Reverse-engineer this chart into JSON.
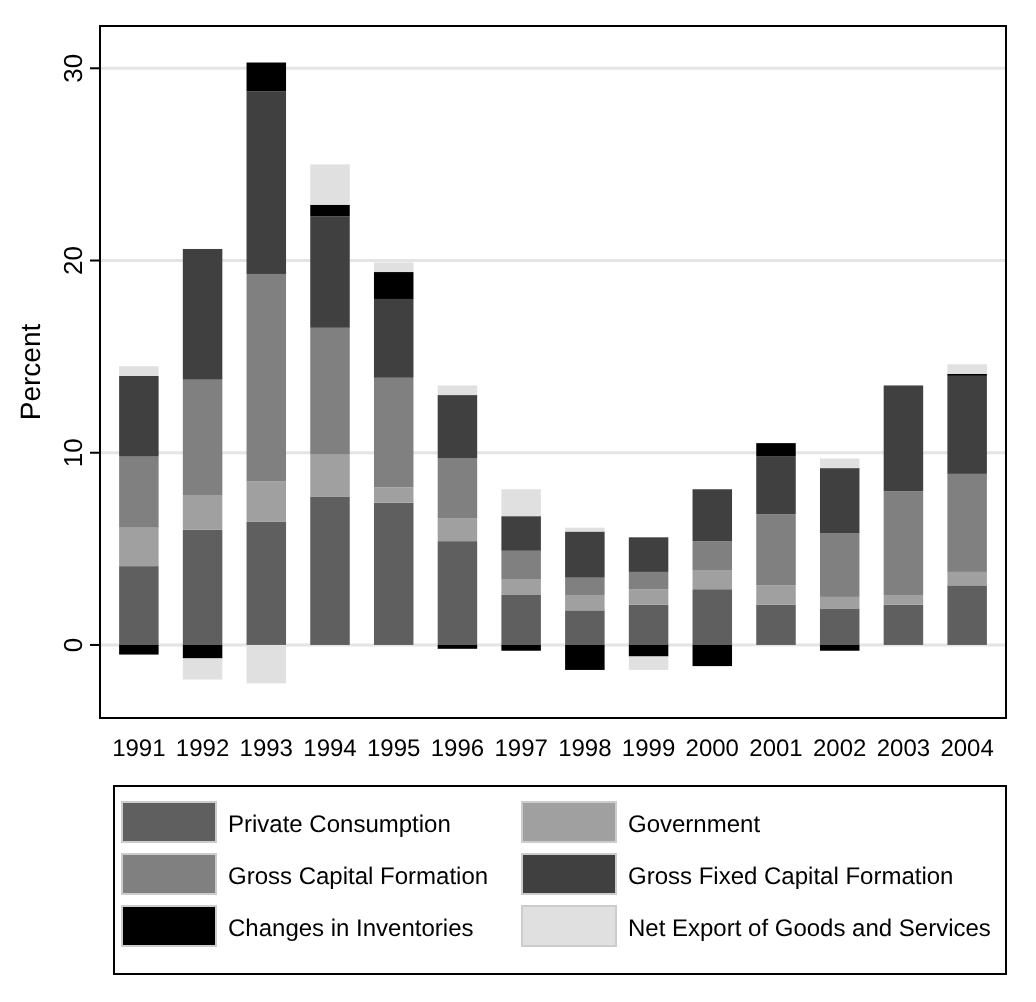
{
  "chart_data": {
    "type": "bar",
    "stacked": true,
    "ylabel": "Percent",
    "categories": [
      "1991",
      "1992",
      "1993",
      "1994",
      "1995",
      "1996",
      "1997",
      "1998",
      "1999",
      "2000",
      "2001",
      "2002",
      "2003",
      "2004"
    ],
    "series": [
      {
        "name": "Private Consumption",
        "color": "#5f5f5f",
        "values": [
          4.1,
          6.0,
          6.4,
          7.7,
          7.4,
          5.4,
          2.6,
          1.8,
          2.1,
          2.9,
          2.1,
          1.9,
          2.1,
          3.1
        ]
      },
      {
        "name": "Government",
        "color": "#a0a0a0",
        "values": [
          2.0,
          1.8,
          2.1,
          2.2,
          0.8,
          1.2,
          0.8,
          0.8,
          0.8,
          1.0,
          1.0,
          0.6,
          0.5,
          0.7
        ]
      },
      {
        "name": "Gross Capital Formation",
        "color": "#808080",
        "values": [
          3.7,
          6.0,
          10.8,
          6.6,
          5.7,
          3.1,
          1.5,
          0.9,
          0.9,
          1.5,
          3.7,
          3.3,
          5.4,
          5.1
        ]
      },
      {
        "name": "Gross Fixed Capital Formation",
        "color": "#404040",
        "values": [
          4.2,
          6.8,
          9.5,
          5.8,
          4.1,
          3.3,
          1.8,
          2.4,
          1.8,
          2.7,
          3.0,
          3.4,
          5.5,
          5.1
        ]
      },
      {
        "name": "Changes in Inventories",
        "color": "#000000",
        "values": [
          -0.5,
          -0.7,
          1.5,
          0.6,
          1.4,
          -0.2,
          -0.3,
          -1.3,
          -0.6,
          -1.1,
          0.7,
          -0.3,
          null,
          0.1
        ]
      },
      {
        "name": "Net Export of Goods and Services",
        "color": "#e0e0e0",
        "values": [
          0.5,
          -1.1,
          -2.0,
          2.1,
          0.5,
          0.5,
          1.4,
          0.2,
          -0.7,
          null,
          null,
          0.5,
          null,
          0.5
        ]
      }
    ],
    "ylim": [
      -3.8,
      32.2
    ],
    "yticks": [
      0,
      10,
      20,
      30
    ],
    "grid": "y",
    "legend": "bottom"
  }
}
